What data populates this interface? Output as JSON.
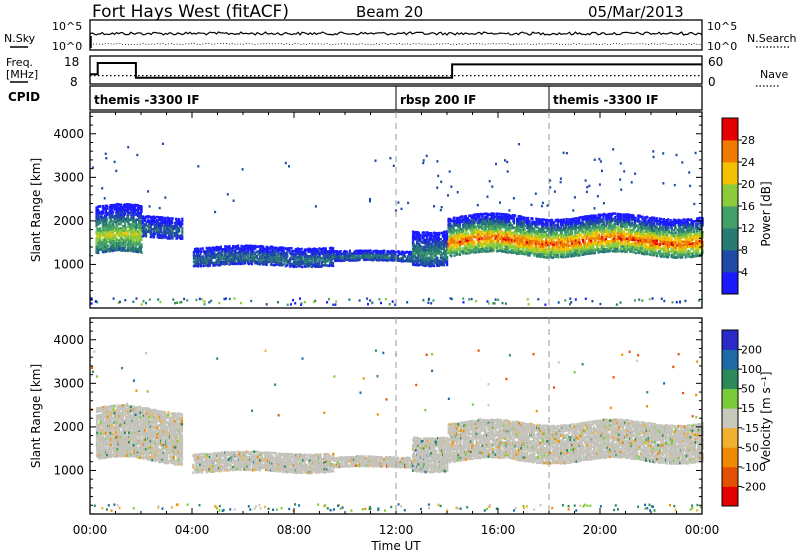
{
  "header": {
    "station": "Fort Hays West (fitACF)",
    "beam": "Beam 20",
    "date": "05/Mar/2013"
  },
  "nsky_panel": {
    "left_label": "N.Sky",
    "left_ticks": [
      "10^5",
      "10^0"
    ],
    "right_ticks": [
      "10^5",
      "10^0"
    ],
    "right_label": "N.Search"
  },
  "freq_panel": {
    "left_label_1": "Freq.",
    "left_label_2": "[MHz]",
    "left_ticks": [
      "18",
      "8"
    ],
    "right_ticks": [
      "60",
      "0"
    ],
    "right_label": "Nave",
    "cpid_label": "CPID",
    "freq_steps": [
      {
        "t0": 0.0,
        "t1": 0.3,
        "value": 11.5
      },
      {
        "t0": 0.3,
        "t1": 1.8,
        "value": 15.5
      },
      {
        "t0": 1.8,
        "t1": 14.2,
        "value": 10.2
      },
      {
        "t0": 14.2,
        "t1": 24.0,
        "value": 15.0
      }
    ],
    "nave_level": 18,
    "nsky_level": 0.55,
    "nsearch_level": 0.2
  },
  "cpid_segments": [
    {
      "label": "themis -3300 IF",
      "t_start": 0
    },
    {
      "label": "rbsp 200 IF",
      "t_start": 12
    },
    {
      "label": "themis -3300 IF",
      "t_start": 18
    }
  ],
  "colors": {
    "power_scale": [
      "#1a1aff",
      "#1f49a6",
      "#2a7a74",
      "#43a068",
      "#8ccc3a",
      "#f2c200",
      "#f07a00",
      "#e40000"
    ],
    "velocity_scale": [
      "#2a2ac8",
      "#1f6aa6",
      "#2c8a5a",
      "#7acb3a",
      "#c9c8bd",
      "#f0b030",
      "#f08a00",
      "#e45000",
      "#e40000"
    ],
    "ground_scatter": "#c4c3bb"
  },
  "chart_data": [
    {
      "type": "heatmap",
      "name": "power",
      "ylabel": "Slant Range [km]",
      "yticks": [
        1000,
        2000,
        3000,
        4000
      ],
      "ylim": [
        0,
        4500
      ],
      "xlim": [
        0,
        24
      ],
      "colorbar": {
        "label": "Power [dB]",
        "ticks": [
          "4",
          "8",
          "12",
          "16",
          "20",
          "24",
          "28"
        ],
        "range": [
          0,
          32
        ]
      },
      "echo_regions": [
        {
          "t0": 0.2,
          "t1": 2.0,
          "r_low": 1200,
          "r_high": 2300,
          "peak_db": 20
        },
        {
          "t0": 2.0,
          "t1": 3.6,
          "r_low": 1600,
          "r_high": 2100,
          "peak_db": 8
        },
        {
          "t0": 4.0,
          "t1": 9.5,
          "r_low": 950,
          "r_high": 1400,
          "peak_db": 10
        },
        {
          "t0": 9.5,
          "t1": 12.6,
          "r_low": 1050,
          "r_high": 1300,
          "peak_db": 10
        },
        {
          "t0": 12.6,
          "t1": 14.0,
          "r_low": 1000,
          "r_high": 1800,
          "peak_db": 12
        },
        {
          "t0": 14.0,
          "t1": 24.0,
          "r_low": 1200,
          "r_high": 2100,
          "peak_db": 28
        }
      ]
    },
    {
      "type": "heatmap",
      "name": "velocity",
      "xlabel": "Time UT",
      "ylabel": "Slant Range [km]",
      "yticks": [
        1000,
        2000,
        3000,
        4000
      ],
      "xticks": [
        "00:00",
        "04:00",
        "08:00",
        "12:00",
        "16:00",
        "20:00",
        "00:00"
      ],
      "ylim": [
        0,
        4500
      ],
      "xlim": [
        0,
        24
      ],
      "colorbar": {
        "label": "Velocity [m s⁻¹]",
        "ticks": [
          "200",
          "100",
          "50",
          "15",
          "-15",
          "-50",
          "-100",
          "-200"
        ],
        "range": [
          -250,
          250
        ]
      },
      "echo_regions": [
        {
          "t0": 0.2,
          "t1": 3.6,
          "r_low": 1200,
          "r_high": 2400,
          "velocity": 0
        },
        {
          "t0": 4.0,
          "t1": 9.5,
          "r_low": 950,
          "r_high": 1400,
          "velocity": 20
        },
        {
          "t0": 9.5,
          "t1": 12.6,
          "r_low": 1050,
          "r_high": 1300,
          "velocity": -30
        },
        {
          "t0": 12.6,
          "t1": 14.0,
          "r_low": 1000,
          "r_high": 1800,
          "velocity": 40
        },
        {
          "t0": 14.0,
          "t1": 24.0,
          "r_low": 1200,
          "r_high": 2100,
          "velocity": 0
        }
      ]
    }
  ]
}
